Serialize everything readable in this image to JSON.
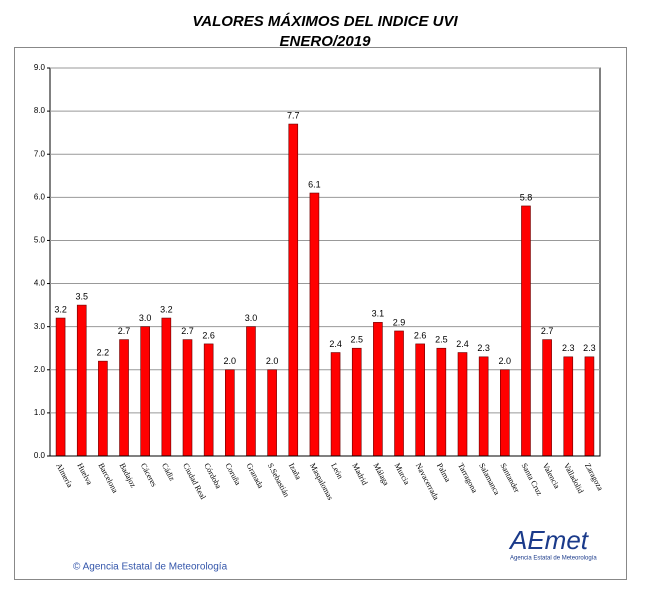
{
  "chart_data": {
    "type": "bar",
    "title": "VALORES MÁXIMOS DEL INDICE UVI",
    "subtitle": "ENERO/2019",
    "categories": [
      "Almería",
      "Huelva",
      "Barcelona",
      "Badajoz",
      "Cáceres",
      "Cádiz",
      "Ciudad Real",
      "Córdoba",
      "Coruña",
      "Granada",
      "S.Sebastián",
      "Izaña",
      "Maspalomas",
      "León",
      "Madrid",
      "Málaga",
      "Murcia",
      "Navacerrada",
      "Palma",
      "Tarragona",
      "Salamanca",
      "Santander",
      "Santa Cruz",
      "Valencia",
      "Valladolid",
      "Zaragoza"
    ],
    "values": [
      3.2,
      3.5,
      2.2,
      2.7,
      3.0,
      3.2,
      2.7,
      2.6,
      2.0,
      3.0,
      2.0,
      7.7,
      6.1,
      2.4,
      2.5,
      3.1,
      2.9,
      2.6,
      2.5,
      2.4,
      2.3,
      2.0,
      5.8,
      2.7,
      2.3,
      2.3
    ],
    "value_labels": [
      "3.2",
      "3.5",
      "2.2",
      "2.7",
      "3.0",
      "3.2",
      "2.7",
      "2.6",
      "2.0",
      "3.0",
      "2.0",
      "7.7",
      "6.1",
      "2.4",
      "2.5",
      "3.1",
      "2.9",
      "2.6",
      "2.5",
      "2.4",
      "2.3",
      "2.0",
      "5.8",
      "2.7",
      "2.3",
      "2.3"
    ],
    "color": "#ff0000",
    "ylim": [
      0,
      9
    ],
    "yticks": [
      {
        "value": 0,
        "label": "0.0"
      },
      {
        "value": 1,
        "label": "1.0"
      },
      {
        "value": 2,
        "label": "2.0"
      },
      {
        "value": 3,
        "label": "3.0"
      },
      {
        "value": 4,
        "label": "4.0"
      },
      {
        "value": 5,
        "label": "5.0"
      },
      {
        "value": 6,
        "label": "6.0"
      },
      {
        "value": 7,
        "label": "7.0"
      },
      {
        "value": 8,
        "label": "8.0"
      },
      {
        "value": 9,
        "label": "9.0"
      }
    ],
    "grid": true
  },
  "footer": {
    "credit": "© Agencia Estatal de Meteorología",
    "logo": "AEmet",
    "logo_caption": "Agencia Estatal de Meteorología"
  }
}
